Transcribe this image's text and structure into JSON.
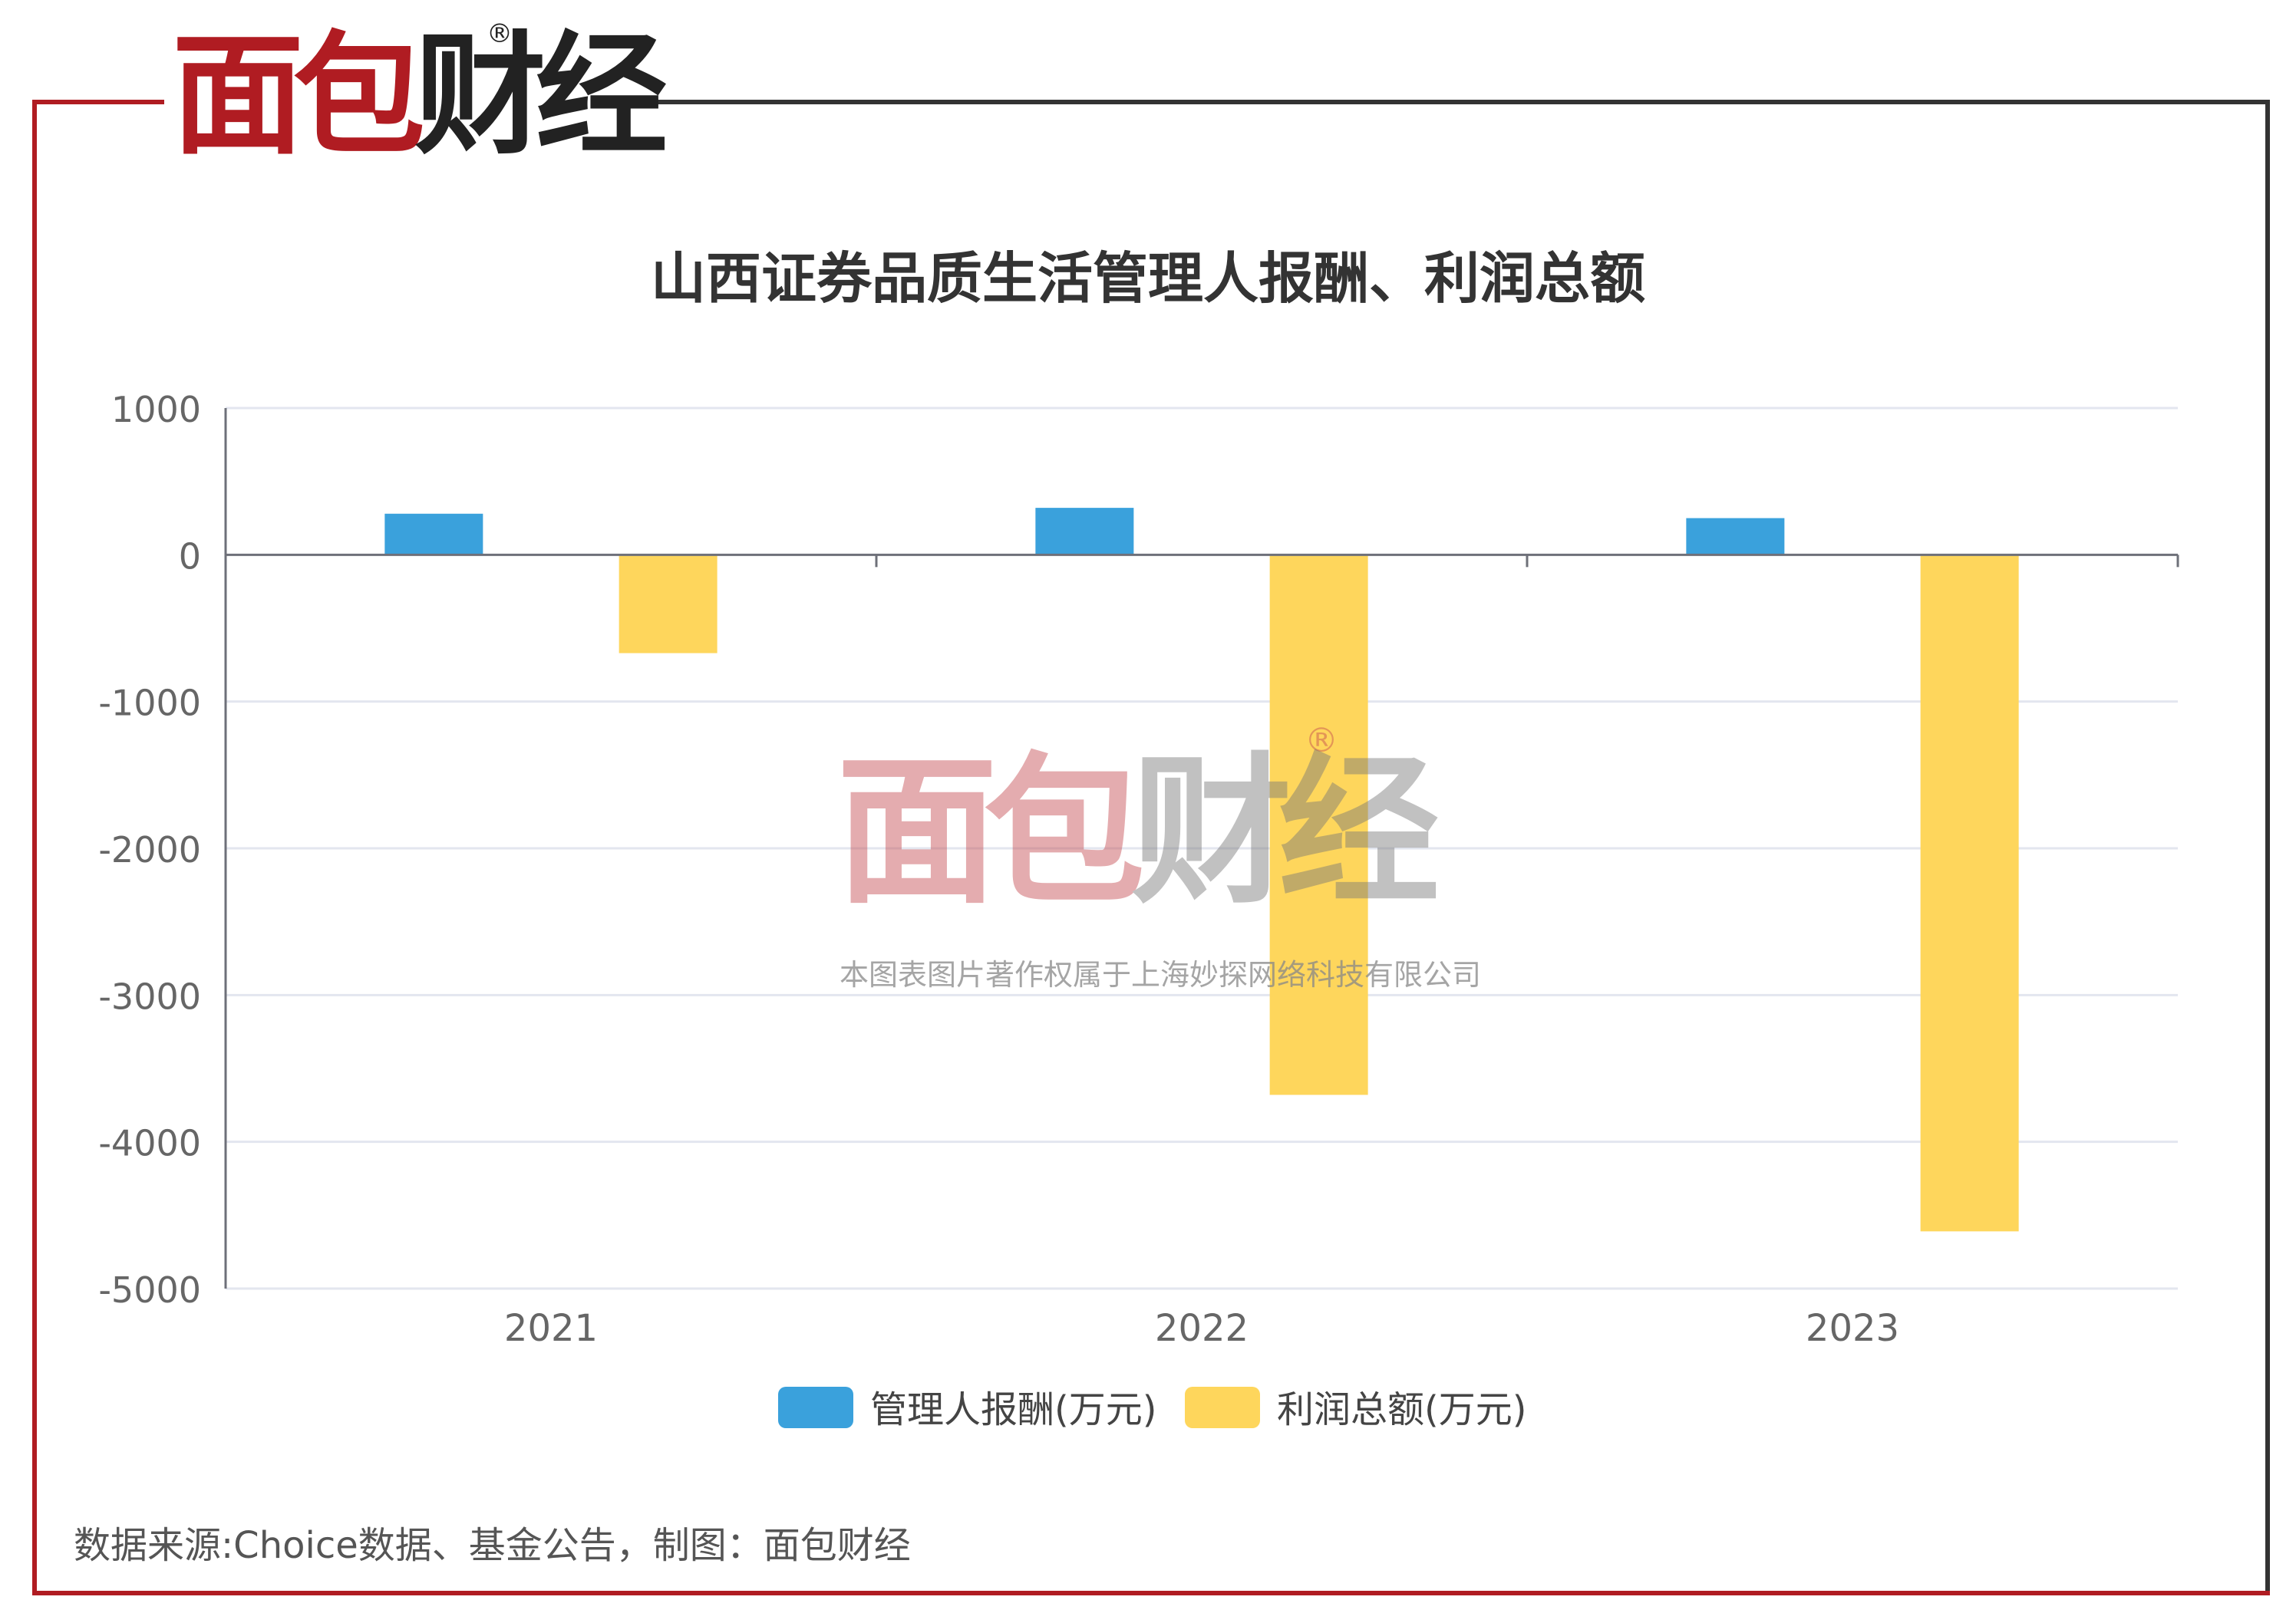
{
  "brand": {
    "logo_red": "面包",
    "logo_dark": "财经",
    "registered_mark": "®"
  },
  "watermark": {
    "logo_red": "面包",
    "logo_gray": "财经",
    "registered_mark": "®",
    "copyright": "本图表图片著作权属于上海妙探网络科技有限公司"
  },
  "source_note": "数据来源:Choice数据、基金公告，制图：面包财经",
  "colors": {
    "frame_red": "#b01c22",
    "frame_dark": "#333333",
    "series_blue": "#3aa1dc",
    "series_yellow": "#fed65c"
  },
  "chart_data": {
    "type": "bar",
    "title": "山西证券品质生活管理人报酬、利润总额",
    "categories": [
      "2021",
      "2022",
      "2023"
    ],
    "series": [
      {
        "name": "管理人报酬(万元)",
        "color": "#3aa1dc",
        "values": [
          280,
          320,
          250
        ]
      },
      {
        "name": "利润总额(万元)",
        "color": "#fed65c",
        "values": [
          -670,
          -3680,
          -4610
        ]
      }
    ],
    "ylim": [
      -5000,
      1000
    ],
    "yticks": [
      "1000",
      "0",
      "-1000",
      "-2000",
      "-3000",
      "-4000",
      "-5000"
    ],
    "grid": true,
    "legend_position": "bottom-center",
    "xlabel": "",
    "ylabel": ""
  }
}
